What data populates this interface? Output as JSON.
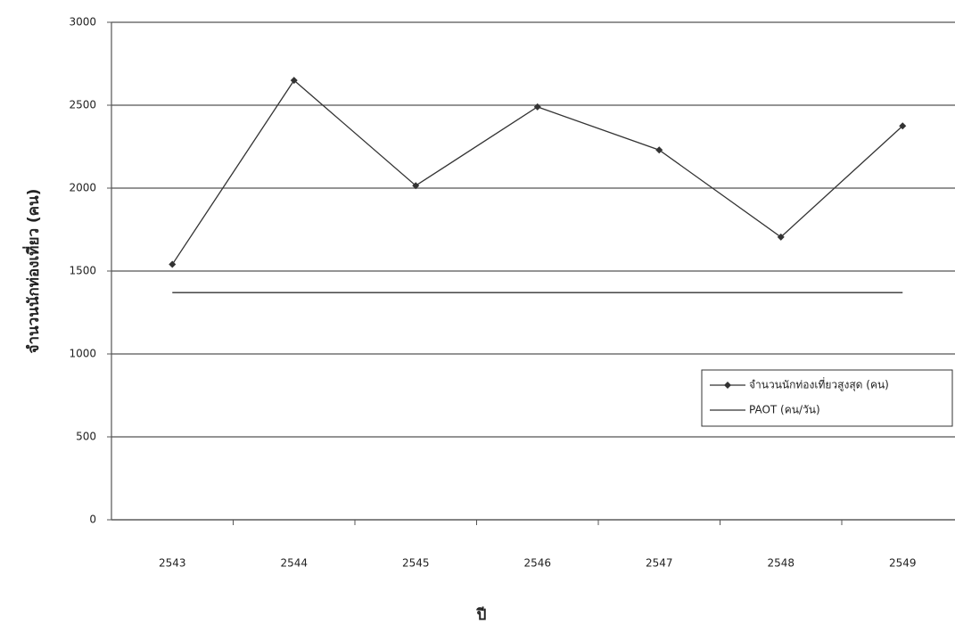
{
  "chart_data": {
    "type": "line",
    "x_label": "ปี",
    "y_label": "จำนวนนักท่องเที่ยว (คน)",
    "categories": [
      "2543",
      "2544",
      "2545",
      "2546",
      "2547",
      "2548",
      "2549"
    ],
    "series": [
      {
        "name": "จำนวนนักท่องเที่ยวสูงสุด (คน)",
        "color": "#333333",
        "marker": "diamond",
        "values": [
          1540,
          2650,
          2015,
          2490,
          2230,
          1705,
          2375
        ]
      },
      {
        "name": "PAOT  (คน/วัน)",
        "color": "#333333",
        "marker": "none",
        "values": [
          1370,
          1370,
          1370,
          1370,
          1370,
          1370,
          1370
        ]
      }
    ],
    "ylim": [
      0,
      3000
    ],
    "yticks": [
      0,
      500,
      1000,
      1500,
      2000,
      2500,
      3000
    ],
    "grid": true,
    "legend": "right"
  }
}
